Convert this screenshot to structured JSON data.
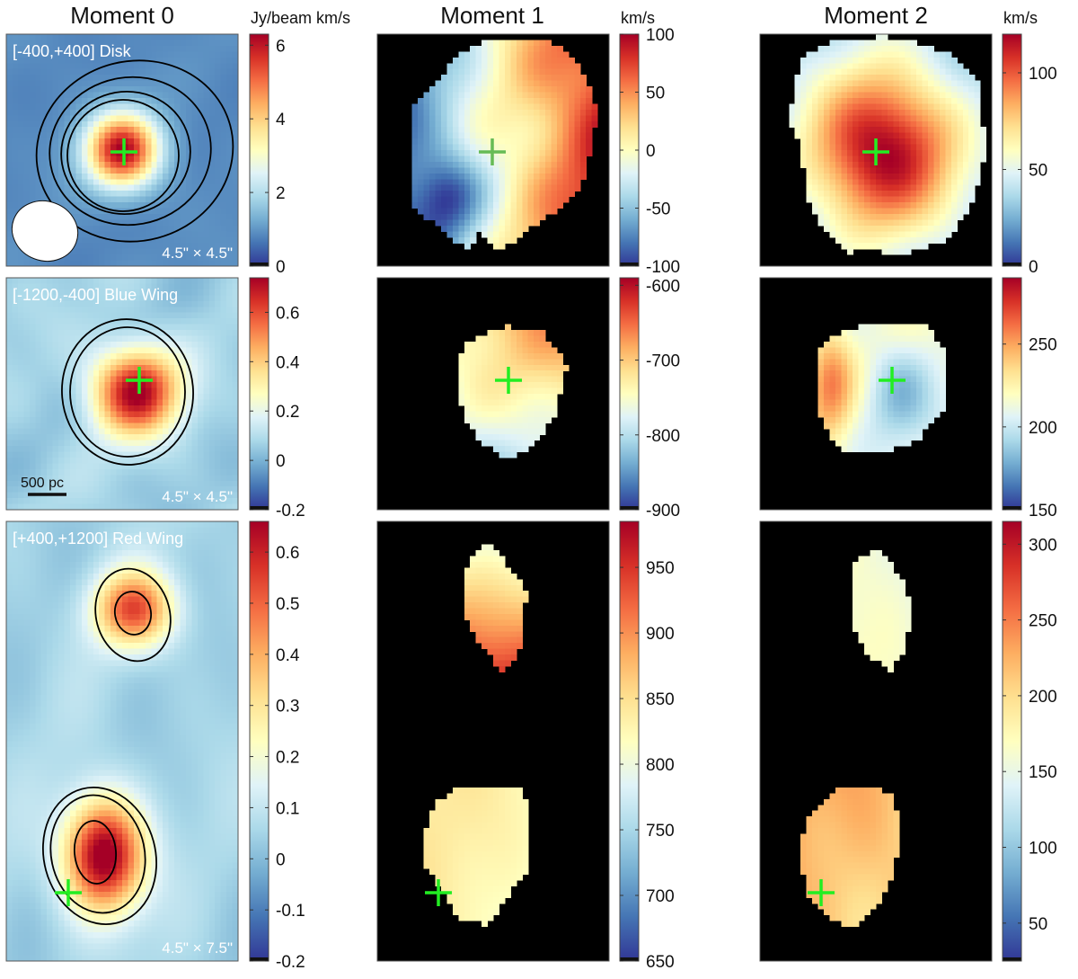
{
  "figure": {
    "column_titles": [
      "Moment 0",
      "Moment 1",
      "Moment 2"
    ],
    "units": {
      "moment0": "Jy/beam km/s",
      "moment1": "km/s",
      "moment2": "km/s"
    },
    "rows": [
      {
        "label": "[-400,+400] Disk",
        "size": "4.5\" × 4.5\"",
        "moment0_ticks": [
          "6",
          "4",
          "2",
          "0"
        ],
        "moment1_ticks": [
          "100",
          "50",
          "0",
          "-50",
          "-100"
        ],
        "moment2_ticks": [
          "100",
          "50",
          "0"
        ]
      },
      {
        "label": "[-1200,-400] Blue Wing",
        "size": "4.5\" × 4.5\"",
        "scalebar": "500 pc",
        "moment0_ticks": [
          "0.6",
          "0.4",
          "0.2",
          "0",
          "-0.2"
        ],
        "moment1_ticks": [
          "-600",
          "-700",
          "-800",
          "-900"
        ],
        "moment2_ticks": [
          "250",
          "200",
          "150"
        ]
      },
      {
        "label": "[+400,+1200] Red Wing",
        "size": "4.5\" × 7.5\"",
        "moment0_ticks": [
          "0.6",
          "0.5",
          "0.4",
          "0.3",
          "0.2",
          "0.1",
          "0",
          "-0.1",
          "-0.2"
        ],
        "moment1_ticks": [
          "950",
          "900",
          "850",
          "800",
          "750",
          "700",
          "650"
        ],
        "moment2_ticks": [
          "300",
          "250",
          "200",
          "150",
          "100",
          "50"
        ]
      }
    ]
  },
  "chart_data": [
    {
      "type": "heatmap",
      "title": "Moment 0",
      "row": "[-400,+400] Disk",
      "colorbar_label": "Jy/beam km/s",
      "clim": [
        0,
        6.3
      ]
    },
    {
      "type": "heatmap",
      "title": "Moment 1",
      "row": "[-400,+400] Disk",
      "colorbar_label": "km/s",
      "clim": [
        -100,
        100
      ]
    },
    {
      "type": "heatmap",
      "title": "Moment 2",
      "row": "[-400,+400] Disk",
      "colorbar_label": "km/s",
      "clim": [
        0,
        120
      ]
    },
    {
      "type": "heatmap",
      "title": "Moment 0",
      "row": "[-1200,-400] Blue Wing",
      "clim": [
        -0.2,
        0.74
      ]
    },
    {
      "type": "heatmap",
      "title": "Moment 1",
      "row": "[-1200,-400] Blue Wing",
      "clim": [
        -900,
        -590
      ]
    },
    {
      "type": "heatmap",
      "title": "Moment 2",
      "row": "[-1200,-400] Blue Wing",
      "clim": [
        150,
        290
      ]
    },
    {
      "type": "heatmap",
      "title": "Moment 0",
      "row": "[+400,+1200] Red Wing",
      "clim": [
        -0.2,
        0.66
      ]
    },
    {
      "type": "heatmap",
      "title": "Moment 1",
      "row": "[+400,+1200] Red Wing",
      "clim": [
        650,
        985
      ]
    },
    {
      "type": "heatmap",
      "title": "Moment 2",
      "row": "[+400,+1200] Red Wing",
      "clim": [
        25,
        315
      ]
    }
  ],
  "colors": {
    "crosshair": "#22ee22",
    "masked_background": "#000000",
    "contour": "#000000",
    "beam": "#ffffff"
  }
}
